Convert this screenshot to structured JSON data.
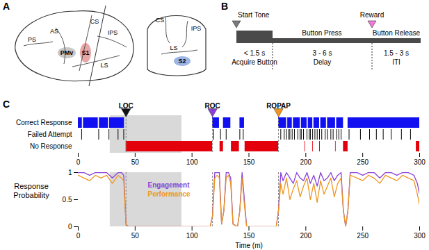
{
  "panel_a": {
    "label": "A",
    "lateral_labels": [
      "PS",
      "AS",
      "CS",
      "IPS",
      "LS",
      "PMv",
      "S1"
    ],
    "coronal_labels": [
      "CS",
      "IPS",
      "LS",
      "S2"
    ]
  },
  "panel_b": {
    "label": "B",
    "markers": [
      {
        "label": "Start Tone",
        "color": "#7a7a7a"
      },
      {
        "label": "Reward",
        "color": "#f27ad8"
      }
    ],
    "top_labels": [
      "Button Press",
      "Button Release"
    ],
    "segments": [
      {
        "duration": "< 1.5 s",
        "name": "Acquire Button"
      },
      {
        "duration": "3 - 6 s",
        "name": "Delay"
      },
      {
        "duration": "1.5 - 3 s",
        "name": "ITI"
      }
    ]
  },
  "chart_data": [
    {
      "type": "raster",
      "panel_label": "C",
      "xlim": [
        0,
        300
      ],
      "xticks": [
        0,
        50,
        100,
        150,
        200,
        250,
        300
      ],
      "shaded": [
        28,
        91
      ],
      "events": [
        {
          "label": "LOC",
          "x": 42,
          "color": "#111111"
        },
        {
          "label": "ROC",
          "x": 118,
          "color": "#8a3fd6"
        },
        {
          "label": "ROPAP",
          "x": 176,
          "color": "#f0961e"
        }
      ],
      "series": [
        {
          "name": "Correct Response",
          "color": "#1010f0",
          "intervals": [
            [
              0,
              3.5
            ],
            [
              4.5,
              17.5
            ],
            [
              18.5,
              26.5
            ],
            [
              27.5,
              40.5
            ],
            [
              118,
              124
            ],
            [
              127.5,
              134
            ],
            [
              142,
              146
            ],
            [
              176,
              183
            ],
            [
              184,
              188
            ],
            [
              189,
              195
            ],
            [
              196,
              201
            ],
            [
              202,
              206
            ],
            [
              207,
              212
            ],
            [
              213,
              218
            ],
            [
              219,
              226
            ],
            [
              227,
              233
            ],
            [
              237,
              300
            ]
          ]
        },
        {
          "name": "Failed Attempt",
          "color": "#000000",
          "times": [
            3,
            18,
            27,
            35,
            40,
            119,
            125,
            130,
            142,
            145,
            178,
            181,
            183,
            185,
            186,
            188,
            190,
            193,
            195,
            196,
            198,
            201,
            203,
            204,
            206,
            208,
            210,
            212,
            214,
            217,
            219,
            222,
            224,
            227,
            229,
            231,
            238,
            248,
            256,
            262,
            268,
            275,
            284,
            292
          ]
        },
        {
          "name": "No Response",
          "color": "#e3000b",
          "intervals": [
            [
              42,
              118
            ],
            [
              124.5,
              127.5
            ],
            [
              134.5,
              141.5
            ],
            [
              146.5,
              176
            ],
            [
              199,
              199.5
            ],
            [
              206,
              206.5
            ],
            [
              212,
              212.6
            ],
            [
              226,
              226.5
            ],
            [
              233,
              237
            ],
            [
              297,
              300
            ]
          ]
        }
      ]
    },
    {
      "type": "line",
      "xlabel": "Time (m)",
      "ylabel": "Response Probability",
      "xlim": [
        0,
        300
      ],
      "xticks": [
        0,
        50,
        100,
        150,
        200,
        250,
        300
      ],
      "ylim": [
        0,
        1
      ],
      "yticks": [
        0,
        0.5,
        1
      ],
      "shaded": [
        28,
        91
      ],
      "x": [
        0,
        5,
        10,
        15,
        20,
        25,
        30,
        35,
        38,
        40,
        42,
        44,
        60,
        80,
        100,
        116,
        118,
        120,
        122,
        124,
        126,
        128,
        130,
        132,
        134,
        136,
        140,
        142,
        144,
        146,
        148,
        160,
        174,
        176,
        178,
        180,
        183,
        186,
        189,
        192,
        195,
        198,
        201,
        204,
        207,
        210,
        213,
        216,
        219,
        222,
        225,
        228,
        231,
        233,
        235,
        237,
        239,
        245,
        250,
        255,
        260,
        265,
        270,
        275,
        280,
        285,
        290,
        295,
        298,
        300
      ],
      "series": [
        {
          "name": "Engagement",
          "color": "#8a3fd6",
          "values": [
            1,
            1,
            0.95,
            1,
            1,
            1,
            0.9,
            1,
            1,
            0.95,
            0.05,
            0,
            0,
            0,
            0,
            0,
            0.2,
            1,
            1,
            1,
            0.05,
            0.3,
            1,
            1,
            0.9,
            0.05,
            0,
            0.3,
            1,
            0.5,
            0,
            0,
            0,
            0.3,
            1,
            0.85,
            1,
            0.9,
            0.8,
            1,
            0.9,
            0.85,
            1,
            0.8,
            0.95,
            0.75,
            1,
            0.85,
            0.9,
            1,
            0.85,
            0.95,
            1,
            0.3,
            0,
            0.3,
            1,
            1,
            0.95,
            1,
            1,
            0.9,
            1,
            1,
            0.95,
            1,
            1,
            0.95,
            0.8,
            0.6
          ]
        },
        {
          "name": "Performance",
          "color": "#f0961e",
          "values": [
            0.95,
            0.9,
            0.85,
            0.95,
            0.9,
            0.95,
            0.8,
            0.95,
            0.9,
            0.85,
            0.05,
            0,
            0,
            0,
            0,
            0,
            0.2,
            0.9,
            0.95,
            0.9,
            0.05,
            0.3,
            0.9,
            0.95,
            0.8,
            0.05,
            0,
            0.3,
            0.9,
            0.4,
            0,
            0,
            0,
            0.3,
            0.8,
            0.6,
            0.9,
            0.5,
            0.7,
            0.85,
            0.55,
            0.75,
            0.9,
            0.5,
            0.8,
            0.45,
            0.85,
            0.6,
            0.75,
            0.9,
            0.55,
            0.8,
            0.9,
            0.3,
            0,
            0.3,
            0.95,
            0.9,
            0.85,
            0.95,
            0.9,
            0.8,
            0.95,
            0.9,
            0.85,
            0.95,
            0.9,
            0.85,
            0.6,
            0.4
          ]
        }
      ]
    }
  ]
}
